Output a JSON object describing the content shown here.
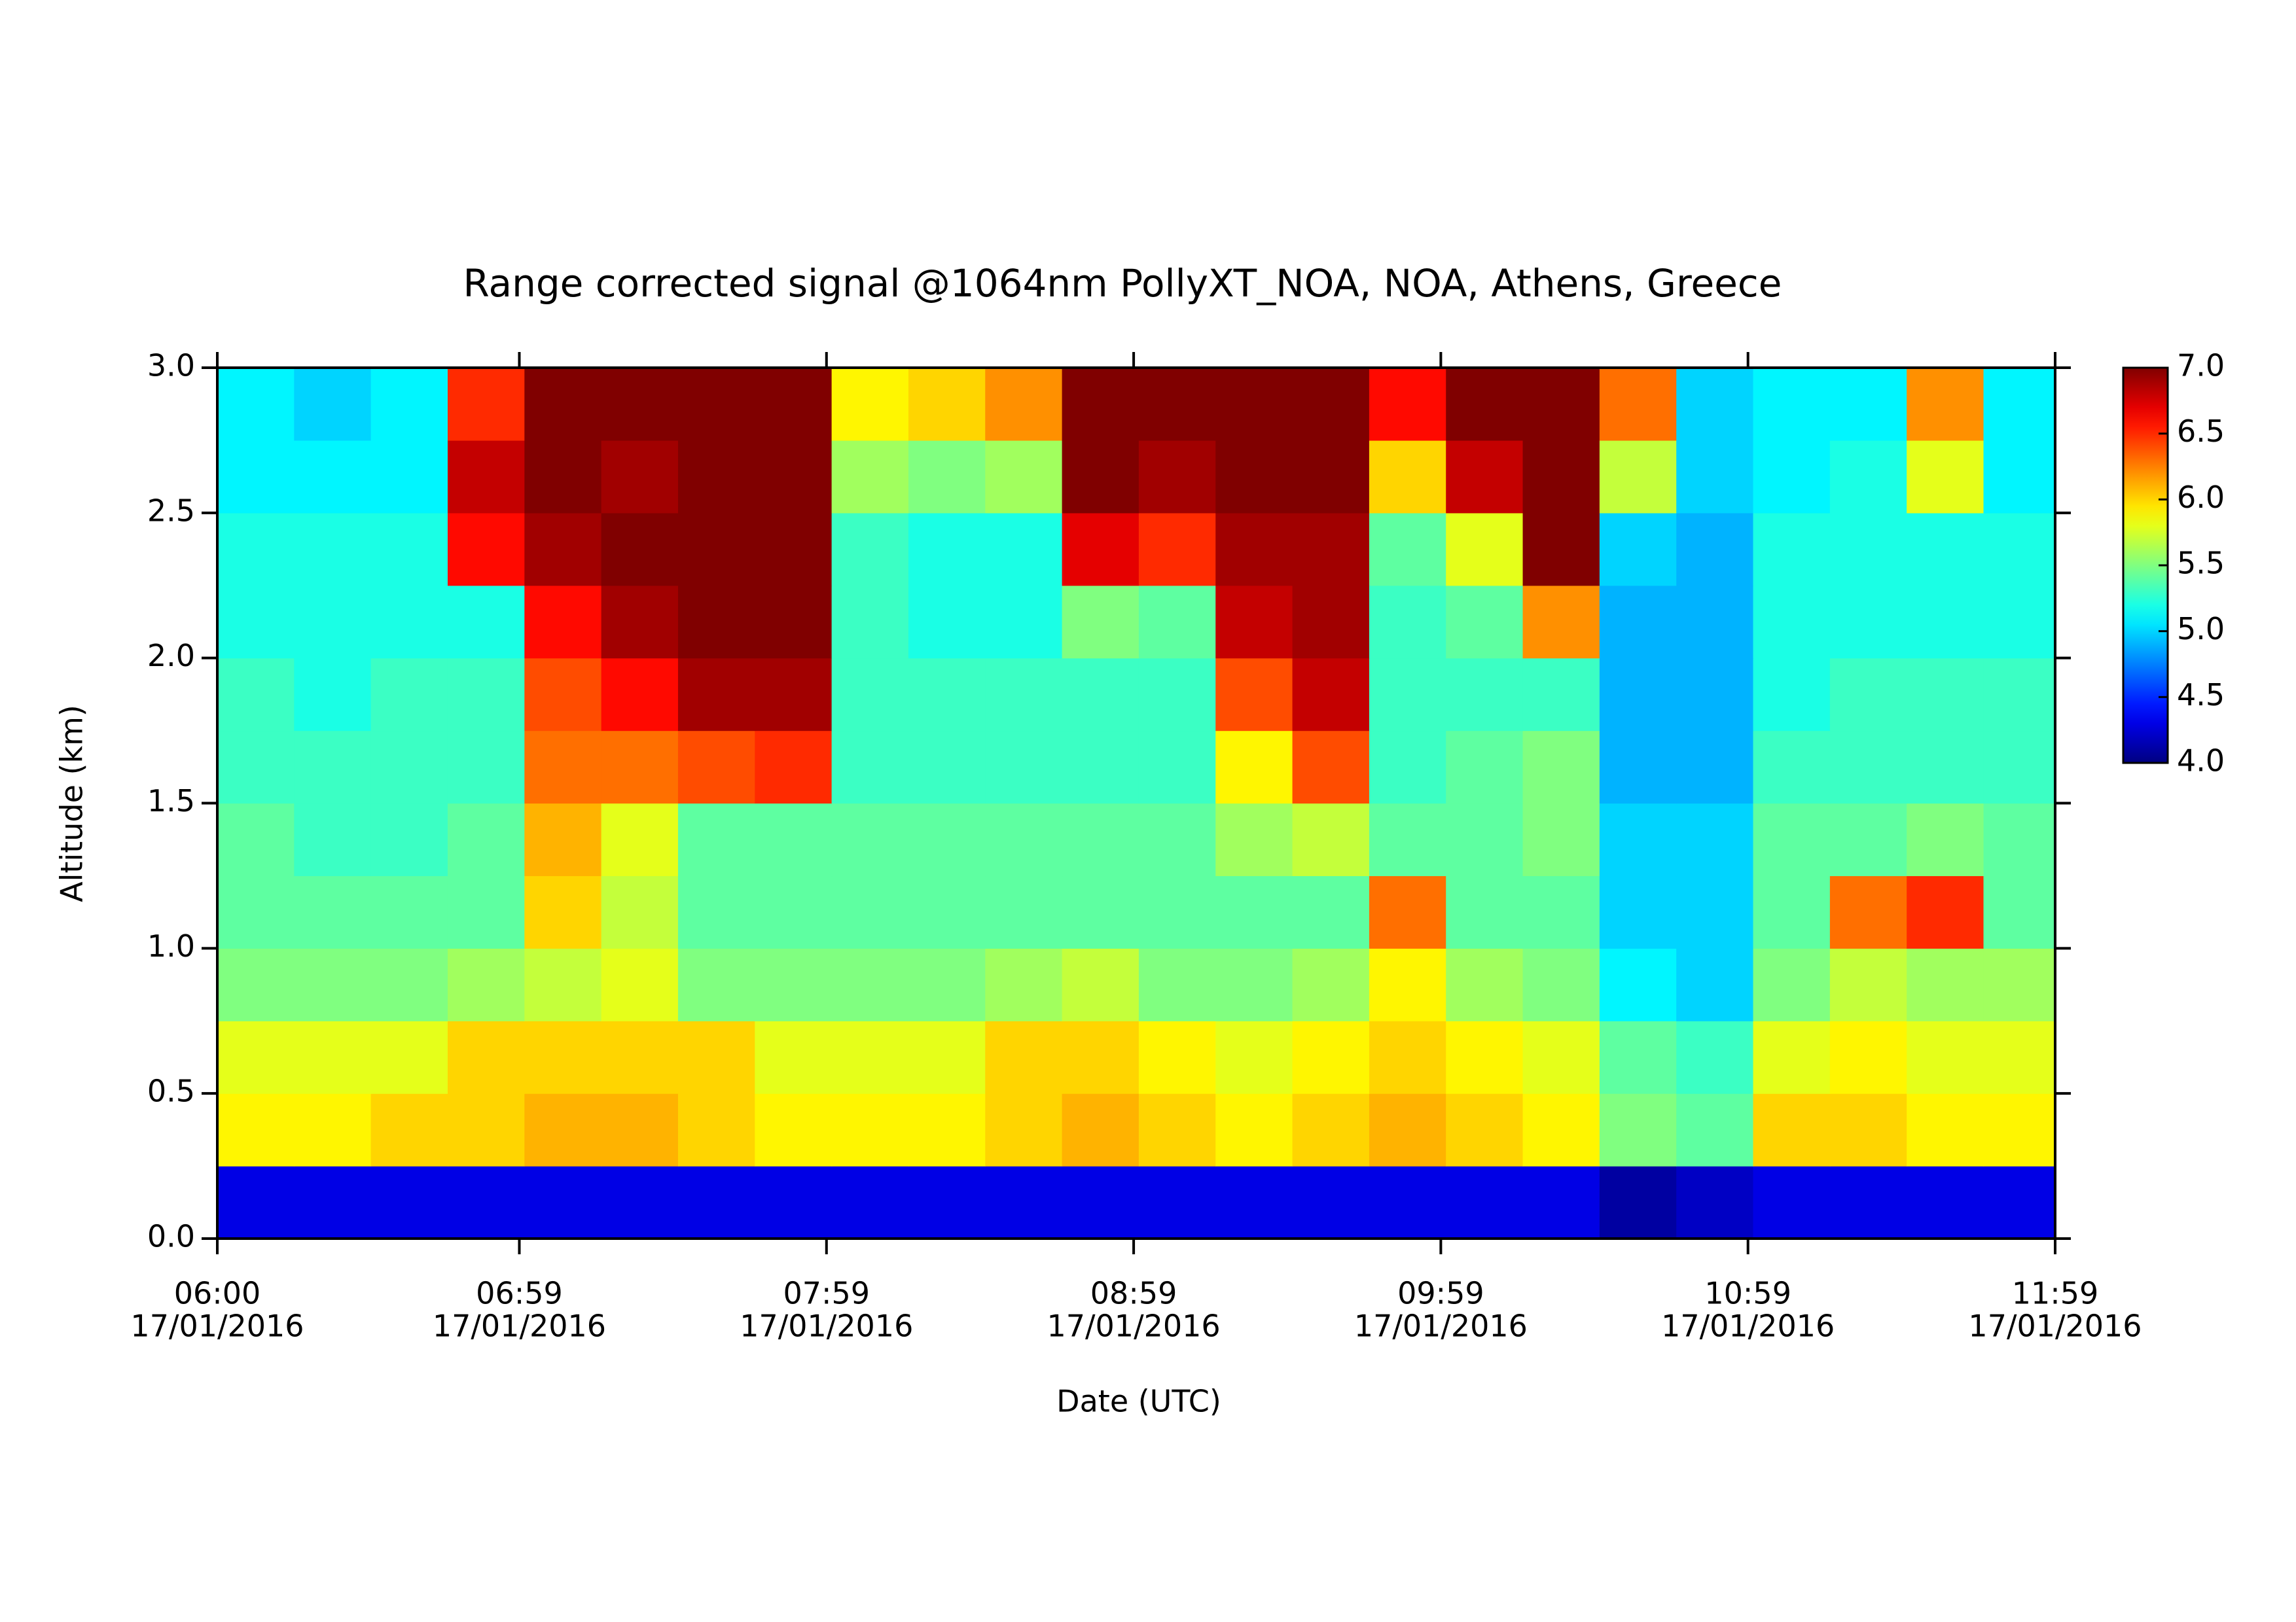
{
  "chart_data": {
    "type": "heatmap",
    "title": "Range corrected signal @1064nm  PollyXT_NOA, NOA, Athens, Greece",
    "x_label": "Date (UTC)",
    "y_label": "Altitude (km)",
    "colormap": "jet",
    "x_bins": [
      6.0,
      6.25,
      6.5,
      6.75,
      7.0,
      7.25,
      7.5,
      7.75,
      8.0,
      8.25,
      8.5,
      8.75,
      9.0,
      9.25,
      9.5,
      9.75,
      10.0,
      10.25,
      10.5,
      10.75,
      11.0,
      11.25,
      11.5,
      11.75,
      12.0
    ],
    "y_bins": [
      0.0,
      0.25,
      0.5,
      0.75,
      1.0,
      1.25,
      1.5,
      1.75,
      2.0,
      2.25,
      2.5,
      2.75,
      3.0
    ],
    "values": [
      [
        4.3,
        4.3,
        4.3,
        4.3,
        4.3,
        4.3,
        4.3,
        4.3,
        4.3,
        4.3,
        4.3,
        4.3,
        4.3,
        4.3,
        4.3,
        4.3,
        4.3,
        4.3,
        4.1,
        4.2,
        4.3,
        4.3,
        4.3,
        4.3
      ],
      [
        5.9,
        5.9,
        6.0,
        6.0,
        6.1,
        6.1,
        6.0,
        5.9,
        5.9,
        5.9,
        6.0,
        6.1,
        6.0,
        5.9,
        6.0,
        6.1,
        6.0,
        5.9,
        5.5,
        5.4,
        6.0,
        6.0,
        5.9,
        5.9
      ],
      [
        5.8,
        5.8,
        5.8,
        6.0,
        6.0,
        6.0,
        6.0,
        5.8,
        5.8,
        5.8,
        6.0,
        6.0,
        5.9,
        5.8,
        5.9,
        6.0,
        5.9,
        5.8,
        5.4,
        5.3,
        5.8,
        5.9,
        5.8,
        5.8
      ],
      [
        5.5,
        5.5,
        5.5,
        5.6,
        5.7,
        5.8,
        5.5,
        5.5,
        5.5,
        5.5,
        5.6,
        5.7,
        5.5,
        5.5,
        5.6,
        5.9,
        5.6,
        5.5,
        5.1,
        5.0,
        5.5,
        5.7,
        5.6,
        5.6
      ],
      [
        5.4,
        5.4,
        5.4,
        5.4,
        6.0,
        5.7,
        5.4,
        5.4,
        5.4,
        5.4,
        5.4,
        5.4,
        5.4,
        5.4,
        5.4,
        6.3,
        5.4,
        5.4,
        5.0,
        5.0,
        5.4,
        6.3,
        6.5,
        5.4
      ],
      [
        5.4,
        5.3,
        5.3,
        5.4,
        6.1,
        5.8,
        5.4,
        5.4,
        5.4,
        5.4,
        5.4,
        5.4,
        5.4,
        5.6,
        5.7,
        5.4,
        5.4,
        5.5,
        5.0,
        5.0,
        5.4,
        5.4,
        5.5,
        5.4
      ],
      [
        5.3,
        5.3,
        5.3,
        5.3,
        6.3,
        6.3,
        6.4,
        6.5,
        5.3,
        5.3,
        5.3,
        5.3,
        5.3,
        5.9,
        6.4,
        5.3,
        5.4,
        5.5,
        4.9,
        4.9,
        5.3,
        5.3,
        5.3,
        5.3
      ],
      [
        5.3,
        5.2,
        5.3,
        5.3,
        6.4,
        6.6,
        6.9,
        6.9,
        5.3,
        5.3,
        5.3,
        5.3,
        5.3,
        6.4,
        6.8,
        5.3,
        5.3,
        5.3,
        4.9,
        4.9,
        5.2,
        5.3,
        5.3,
        5.3
      ],
      [
        5.2,
        5.2,
        5.2,
        5.2,
        6.6,
        6.9,
        7.0,
        7.0,
        5.3,
        5.2,
        5.2,
        5.5,
        5.4,
        6.8,
        6.9,
        5.3,
        5.4,
        6.2,
        4.9,
        4.9,
        5.2,
        5.2,
        5.2,
        5.2
      ],
      [
        5.2,
        5.2,
        5.2,
        6.6,
        6.9,
        7.0,
        7.0,
        7.0,
        5.3,
        5.2,
        5.2,
        6.7,
        6.5,
        6.9,
        6.9,
        5.4,
        5.8,
        7.0,
        5.0,
        4.9,
        5.2,
        5.2,
        5.2,
        5.2
      ],
      [
        5.1,
        5.1,
        5.1,
        6.8,
        7.0,
        6.9,
        7.0,
        7.0,
        5.6,
        5.5,
        5.6,
        7.0,
        6.9,
        7.0,
        7.0,
        6.0,
        6.8,
        7.0,
        5.7,
        5.0,
        5.1,
        5.2,
        5.8,
        5.1
      ],
      [
        5.1,
        5.0,
        5.1,
        6.5,
        7.0,
        7.0,
        7.0,
        7.0,
        5.9,
        6.0,
        6.2,
        7.0,
        7.0,
        7.0,
        7.0,
        6.6,
        7.0,
        7.0,
        6.3,
        5.0,
        5.1,
        5.1,
        6.2,
        5.1
      ]
    ],
    "xlim": [
      6.0,
      11.9833
    ],
    "xticks": [
      {
        "value": 6.0,
        "label": "06:00",
        "date": "17/01/2016"
      },
      {
        "value": 6.9833,
        "label": "06:59",
        "date": "17/01/2016"
      },
      {
        "value": 7.9833,
        "label": "07:59",
        "date": "17/01/2016"
      },
      {
        "value": 8.9833,
        "label": "08:59",
        "date": "17/01/2016"
      },
      {
        "value": 9.9833,
        "label": "09:59",
        "date": "17/01/2016"
      },
      {
        "value": 10.9833,
        "label": "10:59",
        "date": "17/01/2016"
      },
      {
        "value": 11.9833,
        "label": "11:59",
        "date": "17/01/2016"
      }
    ],
    "ylim": [
      0.0,
      3.0
    ],
    "yticks": [
      {
        "value": 0,
        "label": "0.0"
      },
      0.5,
      {
        "value": 1,
        "label": "1.0"
      },
      1.5,
      {
        "value": 2,
        "label": "2.0"
      },
      2.5,
      {
        "value": 3,
        "label": "3.0"
      }
    ],
    "zlim": [
      4.0,
      7.0
    ],
    "zticks": [
      {
        "value": 4,
        "label": "4.0"
      },
      4.5,
      {
        "value": 5,
        "label": "5.0"
      },
      5.5,
      {
        "value": 6,
        "label": "6.0"
      },
      6.5,
      {
        "value": 7,
        "label": "7.0"
      }
    ]
  }
}
